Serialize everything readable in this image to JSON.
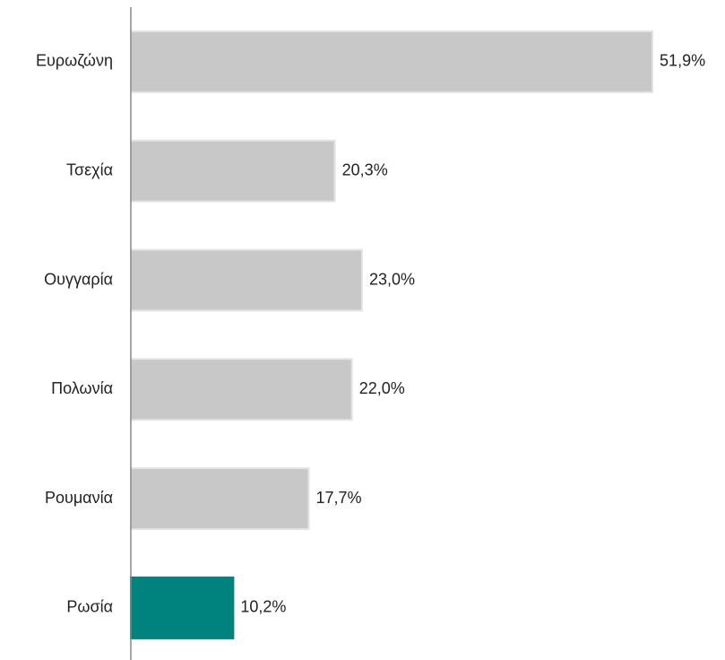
{
  "chart_data": {
    "type": "hbar",
    "categories": [
      "Ευρωζώνη",
      "Τσεχία",
      "Ουγγαρία",
      "Πολωνία",
      "Ρουμανία",
      "Ρωσία"
    ],
    "values": [
      51.9,
      20.3,
      23.0,
      22.0,
      17.7,
      10.2
    ],
    "value_labels": [
      "51,9%",
      "20,3%",
      "23,0%",
      "22,0%",
      "17,7%",
      "10,2%"
    ],
    "colors": [
      "#c8c8c8",
      "#c8c8c8",
      "#c8c8c8",
      "#c8c8c8",
      "#c8c8c8",
      "#00827f"
    ],
    "xlim": [
      0,
      55
    ]
  }
}
